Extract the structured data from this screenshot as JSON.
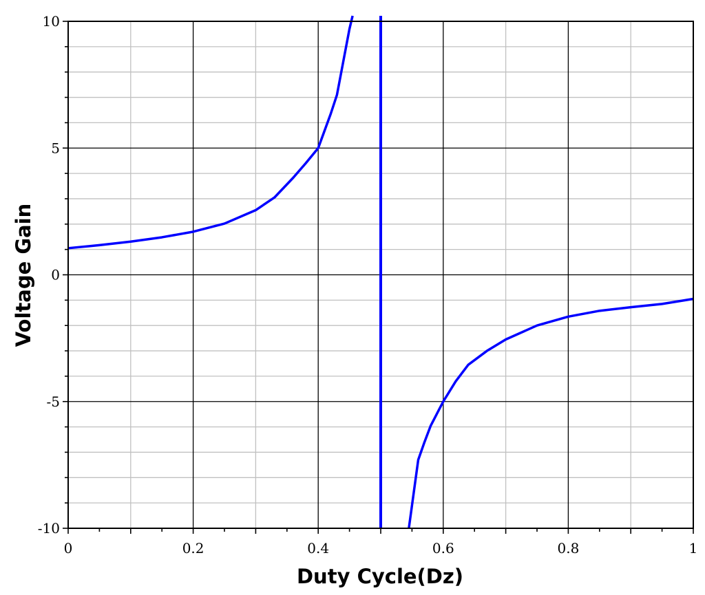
{
  "chart_data": {
    "type": "line",
    "title": "",
    "xlabel": "Duty Cycle(Dz)",
    "ylabel": "Voltage Gain",
    "xlim": [
      0,
      1
    ],
    "ylim": [
      -10,
      10
    ],
    "grid": true,
    "xticks": [
      0,
      0.2,
      0.4,
      0.6,
      0.8,
      1
    ],
    "xtick_labels": [
      "0",
      "0.2",
      "0.4",
      "0.6",
      "0.8",
      "1"
    ],
    "yticks": [
      10,
      5,
      0,
      -5,
      -10
    ],
    "ytick_labels": [
      "10",
      "5",
      "0",
      "-5",
      "-10"
    ],
    "asymptote_x": 0.5,
    "series": [
      {
        "color": "#0000ff",
        "x": [
          0,
          0.05,
          0.1,
          0.15,
          0.2,
          0.25,
          0.3,
          0.33,
          0.36,
          0.38,
          0.4,
          0.42,
          0.43,
          0.44,
          0.45,
          0.455
        ],
        "y": [
          1.05,
          1.17,
          1.31,
          1.48,
          1.7,
          2.02,
          2.55,
          3.05,
          3.83,
          4.4,
          5.0,
          6.35,
          7.1,
          8.4,
          9.7,
          10
        ]
      },
      {
        "color": "#0000ff",
        "x": [
          0.545,
          0.55,
          0.56,
          0.57,
          0.58,
          0.6,
          0.62,
          0.64,
          0.67,
          0.7,
          0.75,
          0.8,
          0.85,
          0.9,
          0.95,
          1
        ],
        "y": [
          -10,
          -9.1,
          -7.3,
          -6.6,
          -5.95,
          -5.0,
          -4.2,
          -3.55,
          -3.0,
          -2.55,
          -2.0,
          -1.65,
          -1.42,
          -1.28,
          -1.15,
          -0.95
        ]
      }
    ]
  }
}
